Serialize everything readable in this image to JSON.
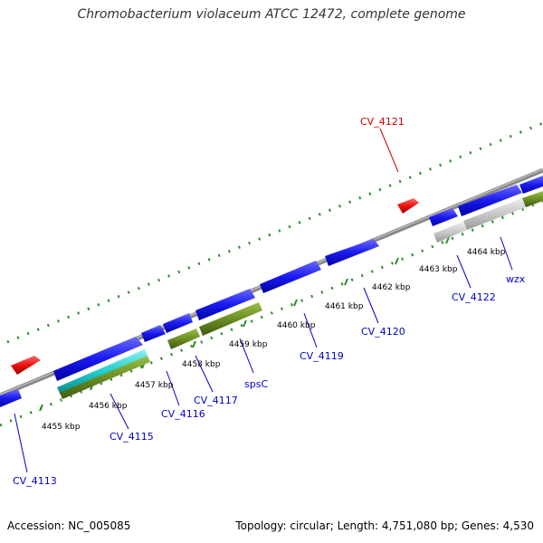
{
  "title": "Chromobacterium violaceum ATCC 12472, complete genome",
  "accession": "Accession: NC_005085",
  "summary": "Topology: circular; Length: 4,751,080 bp; Genes: 4,530",
  "kbp_labels": [
    "4455 kbp",
    "4456 kbp",
    "4457 kbp",
    "4458 kbp",
    "4459 kbp",
    "4460 kbp",
    "4461 kbp",
    "4462 kbp",
    "4463 kbp",
    "4464 kbp"
  ],
  "gene_labels": [
    {
      "id": "cv4113",
      "text": "CV_4113",
      "color": "#0000cc"
    },
    {
      "id": "cv4115",
      "text": "CV_4115",
      "color": "#0000cc"
    },
    {
      "id": "cv4116",
      "text": "CV_4116",
      "color": "#0000cc"
    },
    {
      "id": "cv4117",
      "text": "CV_4117",
      "color": "#0000cc"
    },
    {
      "id": "spsc",
      "text": "spsC",
      "color": "#0000cc"
    },
    {
      "id": "cv4119",
      "text": "CV_4119",
      "color": "#0000cc"
    },
    {
      "id": "cv4120",
      "text": "CV_4120",
      "color": "#0000cc"
    },
    {
      "id": "cv4122",
      "text": "CV_4122",
      "color": "#0000cc"
    },
    {
      "id": "wzx",
      "text": "wzx",
      "color": "#0000cc"
    },
    {
      "id": "cv4121",
      "text": "CV_4121",
      "color": "#cc0000"
    }
  ],
  "colors": {
    "cds": "#1a1af0",
    "rna": "#ee1111",
    "feature_green": "#6b8e23",
    "feature_cyan": "#22cccc",
    "feature_grey": "#c8c8c8",
    "backbone": "#888888",
    "ticks": "#2e8b2e"
  }
}
